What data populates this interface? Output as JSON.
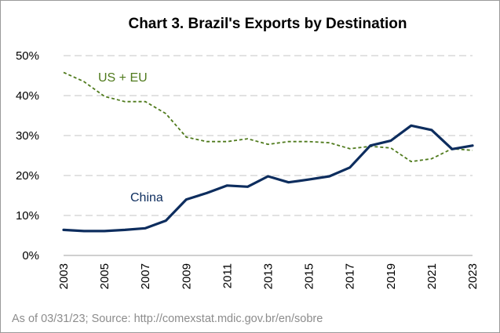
{
  "chart_data": {
    "type": "line",
    "title": "Chart 3. Brazil's Exports by Destination",
    "xlabel": "",
    "ylabel": "",
    "x_tick_labels": [
      "2003",
      "2005",
      "2007",
      "2009",
      "2011",
      "2013",
      "2015",
      "2017",
      "2019",
      "2021",
      "2023"
    ],
    "y_tick_labels": [
      "0%",
      "10%",
      "20%",
      "30%",
      "40%",
      "50%"
    ],
    "ylim": [
      0,
      50
    ],
    "xlim": [
      2003,
      2023
    ],
    "grid": "horizontal dashed",
    "x": [
      2003,
      2004,
      2005,
      2006,
      2007,
      2008,
      2009,
      2010,
      2011,
      2012,
      2013,
      2014,
      2015,
      2016,
      2017,
      2018,
      2019,
      2020,
      2021,
      2022,
      2023
    ],
    "series": [
      {
        "name": "US + EU",
        "color": "#4f7a1c",
        "style": "dashed",
        "values": [
          45.8,
          43.5,
          39.8,
          38.5,
          38.5,
          35.5,
          29.6,
          28.5,
          28.5,
          29.2,
          27.8,
          28.5,
          28.5,
          28.2,
          26.7,
          27.3,
          26.9,
          23.5,
          24.2,
          26.7,
          26.3
        ]
      },
      {
        "name": "China",
        "color": "#0d2d5e",
        "style": "solid",
        "values": [
          6.4,
          6.1,
          6.1,
          6.4,
          6.8,
          8.7,
          14.0,
          15.6,
          17.5,
          17.2,
          19.8,
          18.3,
          19.0,
          19.8,
          22.0,
          27.5,
          28.7,
          32.5,
          31.4,
          26.6,
          27.5
        ]
      }
    ]
  },
  "footer": {
    "source": "As of 03/31/23; Source: http://comexstat.mdic.gov.br/en/sobre"
  }
}
